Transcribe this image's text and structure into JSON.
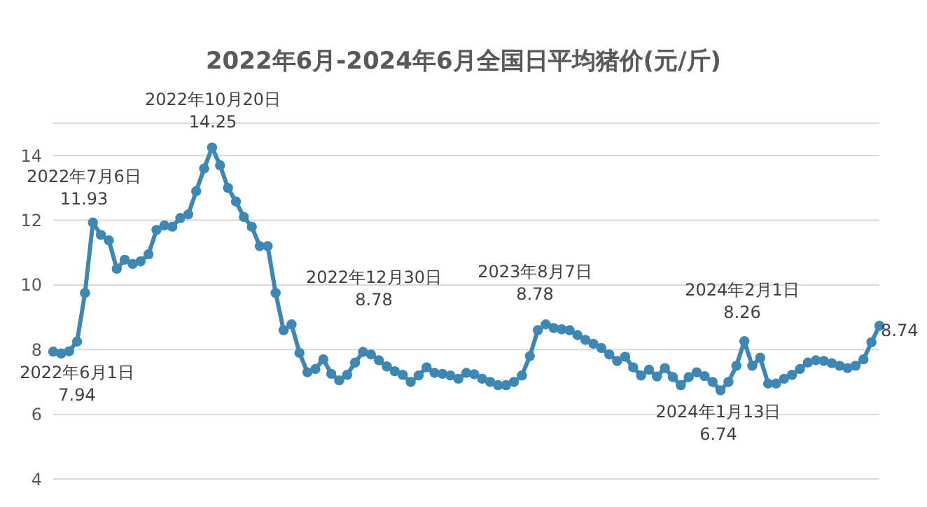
{
  "chart_data": {
    "type": "line",
    "title": "2022年6月-2024年6月全国日平均猪价(元/斤)",
    "marker": "circle",
    "grid": "y",
    "tick_labels": "y",
    "ylim": [
      4,
      15
    ],
    "yticks": [
      4,
      6,
      8,
      10,
      12,
      14
    ],
    "categories": [
      null,
      null,
      null,
      null,
      null,
      null,
      null,
      null,
      null,
      null,
      null,
      null,
      null,
      null,
      null,
      null,
      null,
      null,
      null,
      null,
      null,
      null,
      null,
      null,
      null,
      null,
      null,
      null,
      null,
      null,
      null,
      null,
      null,
      null,
      null,
      null,
      null,
      null,
      null,
      null,
      null,
      null,
      null,
      null,
      null,
      null,
      null,
      null,
      null,
      null,
      null,
      null,
      null,
      null,
      null,
      null,
      null,
      null,
      null,
      null,
      null,
      null,
      null,
      null,
      null,
      null,
      null,
      null,
      null,
      null,
      null,
      null,
      null,
      null,
      null,
      null,
      null,
      null,
      null,
      null,
      null,
      null,
      null,
      null,
      null,
      null,
      null,
      null,
      null,
      null,
      null,
      null,
      null,
      null,
      null,
      null,
      null,
      null,
      null,
      null,
      null,
      null,
      null,
      null,
      null
    ],
    "series": [
      {
        "color": "#3d87b4",
        "values": [
          7.94,
          7.88,
          7.95,
          8.25,
          9.75,
          11.93,
          11.55,
          11.38,
          10.5,
          10.78,
          10.65,
          10.73,
          10.95,
          11.7,
          11.84,
          11.8,
          12.07,
          12.18,
          12.9,
          13.6,
          14.25,
          13.7,
          13.0,
          12.58,
          12.1,
          11.8,
          11.2,
          11.2,
          9.75,
          8.6,
          8.78,
          7.9,
          7.3,
          7.4,
          7.7,
          7.25,
          7.05,
          7.22,
          7.6,
          7.93,
          7.85,
          7.67,
          7.48,
          7.33,
          7.22,
          7.0,
          7.2,
          7.45,
          7.28,
          7.25,
          7.2,
          7.1,
          7.28,
          7.24,
          7.1,
          7.0,
          6.9,
          6.9,
          7.0,
          7.2,
          7.8,
          8.6,
          8.78,
          8.67,
          8.63,
          8.6,
          8.45,
          8.3,
          8.18,
          8.05,
          7.85,
          7.65,
          7.78,
          7.45,
          7.2,
          7.38,
          7.17,
          7.43,
          7.15,
          6.9,
          7.15,
          7.3,
          7.18,
          7.0,
          6.74,
          7.0,
          7.5,
          8.26,
          7.5,
          7.75,
          6.95,
          6.95,
          7.1,
          7.22,
          7.4,
          7.6,
          7.67,
          7.65,
          7.58,
          7.5,
          7.43,
          7.5,
          7.7,
          8.23,
          8.74
        ]
      }
    ],
    "annotations": [
      "2022年6月1日\n7.94",
      "2022年7月6日\n11.93",
      "2022年10月20日\n14.25",
      "2022年12月30日\n8.78",
      "2023年8月7日\n8.78",
      "2024年2月1日\n8.26",
      "2024年1月13日\n6.74",
      "8.74"
    ]
  }
}
